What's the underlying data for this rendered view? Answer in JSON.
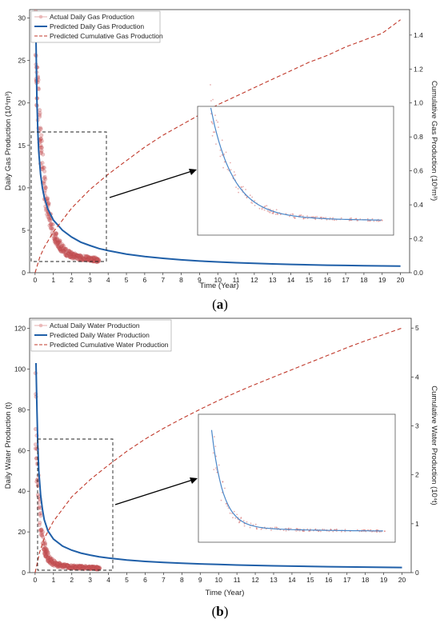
{
  "panels": [
    {
      "caption_open": "(",
      "caption_letter": "a",
      "caption_close": ")",
      "chart_data": {
        "type": "line",
        "title": "",
        "xlabel": "Time (Year)",
        "ylabel": "Daily Gas Production (10⁴m³)",
        "y2label": "Cumulative Gas Production (10⁸m³)",
        "xlim": [
          -0.3,
          20.5
        ],
        "ylim": [
          0,
          31
        ],
        "y2lim": [
          0,
          1.55
        ],
        "x_ticks": [
          0,
          1,
          2,
          3,
          4,
          5,
          6,
          7,
          8,
          9,
          10,
          11,
          12,
          13,
          14,
          15,
          16,
          17,
          18,
          19,
          20
        ],
        "y_ticks": [
          0,
          5,
          10,
          15,
          20,
          25,
          30
        ],
        "y2_ticks": [
          "0.0",
          "0.2",
          "0.4",
          "0.6",
          "0.8",
          "1.0",
          "1.2",
          "1.4"
        ],
        "grid": false,
        "legend_position": "top-left",
        "series": [
          {
            "name": "Actual Daily Gas Production",
            "axis": "left",
            "kind": "scatter",
            "color": "#c0504d",
            "model": {
              "a": 23,
              "b": 2.2,
              "c": 1.05,
              "xmax": 3.5,
              "count": 330,
              "noise": 0.18
            }
          },
          {
            "name": "Predicted Daily Gas Production",
            "axis": "left",
            "kind": "line",
            "color": "#1f5fa8",
            "x": [
              0.05,
              0.1,
              0.15,
              0.2,
              0.3,
              0.4,
              0.5,
              0.7,
              1,
              1.5,
              2,
              2.5,
              3,
              3.5,
              4,
              5,
              6,
              7,
              8,
              9,
              10,
              11,
              12,
              13,
              14,
              15,
              16,
              17,
              18,
              19,
              20
            ],
            "y": [
              27.5,
              20.5,
              16.6,
              14.3,
              11.6,
              10.0,
              8.9,
              7.5,
              6.2,
              5.0,
              4.2,
              3.6,
              3.2,
              2.85,
              2.6,
              2.2,
              1.9,
              1.7,
              1.52,
              1.38,
              1.27,
              1.18,
              1.1,
              1.04,
              0.98,
              0.93,
              0.89,
              0.86,
              0.83,
              0.8,
              0.78
            ]
          },
          {
            "name": "Predicted Cumulative Gas Production",
            "axis": "right",
            "kind": "dashed",
            "color": "#c0392b",
            "x": [
              0,
              0.25,
              0.5,
              1,
              2,
              3,
              4,
              5,
              6,
              7,
              8,
              9,
              10,
              11,
              12,
              13,
              14,
              15,
              16,
              17,
              18,
              19,
              20
            ],
            "y": [
              0,
              0.09,
              0.15,
              0.24,
              0.38,
              0.49,
              0.58,
              0.66,
              0.74,
              0.81,
              0.87,
              0.93,
              0.99,
              1.04,
              1.09,
              1.14,
              1.19,
              1.24,
              1.28,
              1.33,
              1.37,
              1.41,
              1.49
            ]
          }
        ]
      }
    },
    {
      "caption_open": "(",
      "caption_letter": "b",
      "caption_close": ")",
      "chart_data": {
        "type": "line",
        "title": "",
        "xlabel": "Time (Year)",
        "ylabel": "Daily Water Production (t)",
        "y2label": "Cumulative Water Production (10⁴t)",
        "xlim": [
          -0.3,
          20.5
        ],
        "ylim": [
          0,
          125
        ],
        "y2lim": [
          0,
          5.2
        ],
        "x_ticks": [
          0,
          1,
          2,
          3,
          4,
          5,
          6,
          7,
          8,
          9,
          10,
          11,
          12,
          13,
          14,
          15,
          16,
          17,
          18,
          19,
          20
        ],
        "y_ticks": [
          0,
          20,
          40,
          60,
          80,
          100,
          120
        ],
        "y2_ticks": [
          "0",
          "1",
          "2",
          "3",
          "4",
          "5"
        ],
        "grid": false,
        "legend_position": "top-left",
        "series": [
          {
            "name": "Actual Daily Water Production",
            "axis": "left",
            "kind": "scatter",
            "color": "#c0504d",
            "model": {
              "a": 75,
              "b": 4.5,
              "c": 1.25,
              "xmax": 3.5,
              "count": 330,
              "noise": 0.3
            }
          },
          {
            "name": "Predicted Daily Water Production",
            "axis": "left",
            "kind": "line",
            "color": "#1f5fa8",
            "x": [
              0.05,
              0.1,
              0.15,
              0.2,
              0.3,
              0.4,
              0.5,
              0.7,
              1,
              1.5,
              2,
              2.5,
              3,
              3.5,
              4,
              5,
              6,
              7,
              8,
              9,
              10,
              11,
              12,
              13,
              14,
              15,
              16,
              17,
              18,
              19,
              20
            ],
            "y": [
              103,
              80,
              62,
              50,
              38,
              31,
              26,
              20.5,
              16.5,
              13.0,
              11.0,
              9.6,
              8.6,
              7.8,
              7.2,
              6.2,
              5.5,
              5.0,
              4.6,
              4.3,
              4.0,
              3.75,
              3.55,
              3.35,
              3.2,
              3.05,
              2.9,
              2.8,
              2.7,
              2.6,
              2.5
            ]
          },
          {
            "name": "Predicted Cumulative Water Production",
            "axis": "right",
            "kind": "dashed",
            "color": "#c0392b",
            "x": [
              0,
              0.25,
              0.5,
              1,
              2,
              3,
              4,
              5,
              6,
              7,
              8,
              9,
              10,
              11,
              12,
              13,
              14,
              15,
              16,
              17,
              18,
              19,
              20
            ],
            "y": [
              0,
              0.42,
              0.7,
              1.05,
              1.55,
              1.9,
              2.2,
              2.48,
              2.73,
              2.95,
              3.15,
              3.34,
              3.52,
              3.69,
              3.85,
              4.0,
              4.15,
              4.3,
              4.45,
              4.6,
              4.74,
              4.87,
              5.0
            ]
          }
        ]
      }
    }
  ]
}
